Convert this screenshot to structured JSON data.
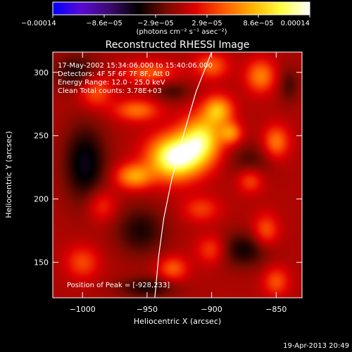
{
  "chart_data": {
    "type": "heatmap",
    "title": "Reconstructed RHESSI Image",
    "xlabel": "Heliocentric X (arcsec)",
    "ylabel": "Heliocentric Y (arcsec)",
    "xlim": [
      -1023,
      -830
    ],
    "ylim": [
      122,
      316
    ],
    "x_ticks": [
      -1000,
      -950,
      -900,
      -850
    ],
    "x_tick_labels": [
      "−1000",
      "−950",
      "−900",
      "−850"
    ],
    "y_ticks": [
      150,
      200,
      250,
      300
    ],
    "y_tick_labels": [
      "150",
      "200",
      "250",
      "300"
    ],
    "colorbar": {
      "range": [
        -0.00014,
        0.00014
      ],
      "tick_labels": [
        "−0.00014",
        "−8.6e−05",
        "−2.9e−05",
        "2.9e−05",
        "8.6e−05",
        "0.00014"
      ],
      "unit_label": "(photons cm⁻² s⁻¹ asec⁻²)",
      "colors": [
        "#0000ff",
        "#5a0ad2",
        "#3c0a6e",
        "#000000",
        "#7a0a00",
        "#e00000",
        "#ff5a00",
        "#ffb400",
        "#ffff40",
        "#ffffff"
      ]
    },
    "annotations": [
      "17-May-2002 15:34:06.000 to 15:40:06.000",
      "Detectors: 4F 5F 6F 7F 8F, Att 0",
      "Energy Range: 12.0 - 25.0 keV",
      "Clean     Total counts: 3.78E+03"
    ],
    "peak_label": "Position of Peak = [-928,233]",
    "peak": {
      "x": -928,
      "y": 233
    },
    "grid": false,
    "limb_curve": [
      [
        -900,
        316
      ],
      [
        -912,
        285
      ],
      [
        -922,
        250
      ],
      [
        -931,
        215
      ],
      [
        -937,
        185
      ],
      [
        -941,
        155
      ],
      [
        -944,
        122
      ]
    ],
    "sources": [
      {
        "x": -928,
        "y": 233,
        "amp": 1.0,
        "sx": 14,
        "sy": 12
      },
      {
        "x": -908,
        "y": 247,
        "amp": 0.72,
        "sx": 11,
        "sy": 13
      },
      {
        "x": -895,
        "y": 270,
        "amp": 0.55,
        "sx": 8,
        "sy": 8
      },
      {
        "x": -960,
        "y": 218,
        "amp": 0.5,
        "sx": 10,
        "sy": 7
      },
      {
        "x": -885,
        "y": 252,
        "amp": 0.42,
        "sx": 6,
        "sy": 6
      },
      {
        "x": -958,
        "y": 270,
        "amp": 0.38,
        "sx": 12,
        "sy": 6
      },
      {
        "x": -948,
        "y": 300,
        "amp": 0.32,
        "sx": 14,
        "sy": 6
      },
      {
        "x": -900,
        "y": 305,
        "amp": 0.34,
        "sx": 9,
        "sy": 7
      },
      {
        "x": -862,
        "y": 297,
        "amp": 0.42,
        "sx": 8,
        "sy": 9
      },
      {
        "x": -850,
        "y": 245,
        "amp": 0.4,
        "sx": 7,
        "sy": 9
      },
      {
        "x": -870,
        "y": 215,
        "amp": 0.3,
        "sx": 7,
        "sy": 7
      },
      {
        "x": -990,
        "y": 285,
        "amp": 0.33,
        "sx": 9,
        "sy": 9
      },
      {
        "x": -985,
        "y": 195,
        "amp": 0.25,
        "sx": 8,
        "sy": 9
      },
      {
        "x": -908,
        "y": 192,
        "amp": 0.25,
        "sx": 10,
        "sy": 7
      },
      {
        "x": -1000,
        "y": 150,
        "amp": 0.28,
        "sx": 9,
        "sy": 9
      },
      {
        "x": -930,
        "y": 145,
        "amp": 0.33,
        "sx": 8,
        "sy": 7
      },
      {
        "x": -900,
        "y": 160,
        "amp": 0.28,
        "sx": 8,
        "sy": 8
      },
      {
        "x": -858,
        "y": 175,
        "amp": 0.32,
        "sx": 7,
        "sy": 9
      },
      {
        "x": -850,
        "y": 135,
        "amp": 0.3,
        "sx": 7,
        "sy": 8
      },
      {
        "x": -998,
        "y": 228,
        "amp": -0.38,
        "sx": 12,
        "sy": 22
      },
      {
        "x": -1005,
        "y": 300,
        "amp": -0.28,
        "sx": 12,
        "sy": 10
      },
      {
        "x": -955,
        "y": 175,
        "amp": -0.28,
        "sx": 14,
        "sy": 14
      },
      {
        "x": -875,
        "y": 160,
        "amp": -0.3,
        "sx": 14,
        "sy": 10
      },
      {
        "x": -950,
        "y": 130,
        "amp": -0.28,
        "sx": 16,
        "sy": 6
      },
      {
        "x": -870,
        "y": 230,
        "amp": -0.2,
        "sx": 12,
        "sy": 10
      },
      {
        "x": -840,
        "y": 290,
        "amp": -0.2,
        "sx": 6,
        "sy": 10
      },
      {
        "x": -930,
        "y": 285,
        "amp": -0.2,
        "sx": 10,
        "sy": 6
      }
    ]
  },
  "footer": {
    "date_stamp": "19-Apr-2013 20:49"
  }
}
